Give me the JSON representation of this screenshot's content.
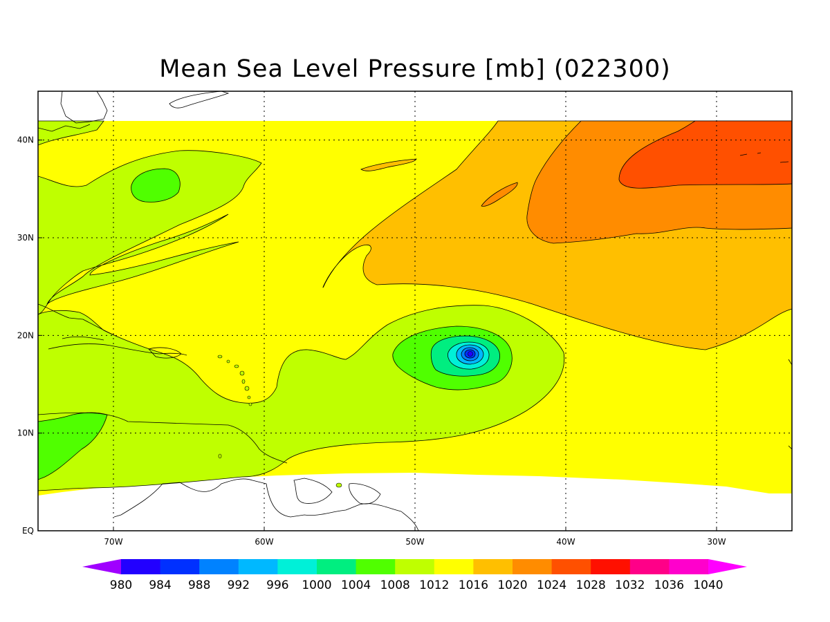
{
  "title": "Mean Sea Level Pressure [mb] (022300)",
  "map": {
    "lon_range": [
      -75,
      -25
    ],
    "lat_range": [
      0,
      45
    ],
    "data_lat_range": [
      4,
      42
    ],
    "lon_ticks": [
      {
        "value": -70,
        "label": "70W"
      },
      {
        "value": -60,
        "label": "60W"
      },
      {
        "value": -50,
        "label": "50W"
      },
      {
        "value": -40,
        "label": "40W"
      },
      {
        "value": -30,
        "label": "30W"
      }
    ],
    "lat_ticks": [
      {
        "value": 0,
        "label": "EQ"
      },
      {
        "value": 10,
        "label": "10N"
      },
      {
        "value": 20,
        "label": "20N"
      },
      {
        "value": 30,
        "label": "30N"
      },
      {
        "value": 40,
        "label": "40N"
      }
    ],
    "grid": "dotted",
    "low_center": {
      "lon": -46.5,
      "lat": 18,
      "min_pressure_band": 984
    }
  },
  "colorbar": {
    "levels": [
      "980",
      "984",
      "988",
      "992",
      "996",
      "1000",
      "1004",
      "1008",
      "1012",
      "1016",
      "1020",
      "1024",
      "1028",
      "1032",
      "1036",
      "1040"
    ],
    "colors": [
      "#a000ff",
      "#2200ff",
      "#0030ff",
      "#0082ff",
      "#00b8ff",
      "#00f0d8",
      "#00ee80",
      "#50ff00",
      "#bfff00",
      "#ffff00",
      "#ffbf00",
      "#ff8c00",
      "#ff5000",
      "#ff1000",
      "#ff0088",
      "#ff00cc",
      "#ff00ff"
    ]
  }
}
